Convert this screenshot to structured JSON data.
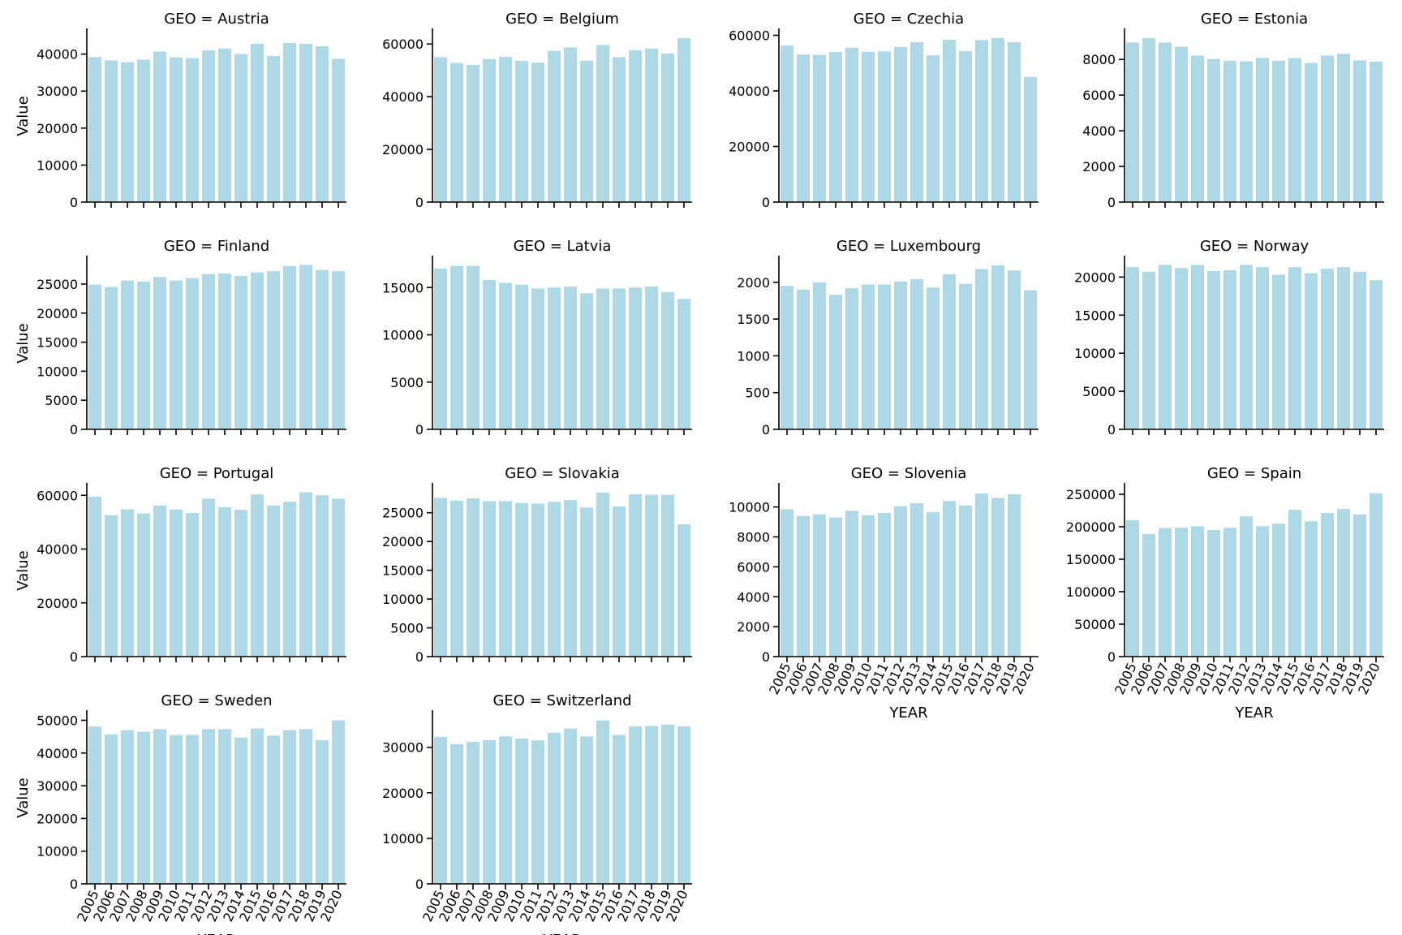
{
  "figure": {
    "bar_color": "#add8e6",
    "axis_color": "#000000",
    "background": "#ffffff"
  },
  "chart_data": [
    {
      "type": "bar",
      "title": "GEO = Austria",
      "xlabel": "",
      "ylabel": "Value",
      "categories": [
        "2005",
        "2006",
        "2007",
        "2008",
        "2009",
        "2010",
        "2011",
        "2012",
        "2013",
        "2014",
        "2015",
        "2016",
        "2017",
        "2018",
        "2019",
        "2020"
      ],
      "values": [
        39200,
        38300,
        37800,
        38500,
        40700,
        39100,
        38900,
        41000,
        41500,
        40000,
        42800,
        39500,
        43000,
        42800,
        42100,
        38700
      ],
      "ylim": [
        0,
        46500
      ],
      "yticks": [
        0,
        10000,
        20000,
        30000,
        40000
      ],
      "show_xticklabels": false
    },
    {
      "type": "bar",
      "title": "GEO = Belgium",
      "xlabel": "",
      "ylabel": "",
      "categories": [
        "2005",
        "2006",
        "2007",
        "2008",
        "2009",
        "2010",
        "2011",
        "2012",
        "2013",
        "2014",
        "2015",
        "2016",
        "2017",
        "2018",
        "2019",
        "2020"
      ],
      "values": [
        55000,
        52800,
        52100,
        54300,
        55100,
        53600,
        52900,
        57400,
        58700,
        53700,
        59600,
        55000,
        57600,
        58300,
        56400,
        62200
      ],
      "ylim": [
        0,
        65300
      ],
      "yticks": [
        0,
        20000,
        40000,
        60000
      ],
      "show_xticklabels": false
    },
    {
      "type": "bar",
      "title": "GEO = Czechia",
      "xlabel": "",
      "ylabel": "",
      "categories": [
        "2005",
        "2006",
        "2007",
        "2008",
        "2009",
        "2010",
        "2011",
        "2012",
        "2013",
        "2014",
        "2015",
        "2016",
        "2017",
        "2018",
        "2019",
        "2020"
      ],
      "values": [
        56300,
        53100,
        53000,
        54000,
        55500,
        54100,
        54200,
        55800,
        57500,
        52800,
        58400,
        54300,
        58300,
        59000,
        57500,
        45000
      ],
      "ylim": [
        0,
        61900
      ],
      "yticks": [
        0,
        20000,
        40000,
        60000
      ],
      "show_xticklabels": false
    },
    {
      "type": "bar",
      "title": "GEO = Estonia",
      "xlabel": "",
      "ylabel": "",
      "categories": [
        "2005",
        "2006",
        "2007",
        "2008",
        "2009",
        "2010",
        "2011",
        "2012",
        "2013",
        "2014",
        "2015",
        "2016",
        "2017",
        "2018",
        "2019",
        "2020"
      ],
      "values": [
        8950,
        9200,
        8950,
        8720,
        8220,
        8030,
        7930,
        7900,
        8090,
        7930,
        8080,
        7800,
        8220,
        8320,
        7950,
        7880
      ],
      "ylim": [
        0,
        9650
      ],
      "yticks": [
        0,
        2000,
        4000,
        6000,
        8000
      ],
      "show_xticklabels": false
    },
    {
      "type": "bar",
      "title": "GEO = Finland",
      "xlabel": "",
      "ylabel": "Value",
      "categories": [
        "2005",
        "2006",
        "2007",
        "2008",
        "2009",
        "2010",
        "2011",
        "2012",
        "2013",
        "2014",
        "2015",
        "2016",
        "2017",
        "2018",
        "2019",
        "2020"
      ],
      "values": [
        24900,
        24500,
        25600,
        25400,
        26200,
        25600,
        26000,
        26700,
        26800,
        26400,
        27000,
        27200,
        28100,
        28300,
        27400,
        27200
      ],
      "ylim": [
        0,
        29600
      ],
      "yticks": [
        0,
        5000,
        10000,
        15000,
        20000,
        25000
      ],
      "show_xticklabels": false
    },
    {
      "type": "bar",
      "title": "GEO = Latvia",
      "xlabel": "",
      "ylabel": "",
      "categories": [
        "2005",
        "2006",
        "2007",
        "2008",
        "2009",
        "2010",
        "2011",
        "2012",
        "2013",
        "2014",
        "2015",
        "2016",
        "2017",
        "2018",
        "2019",
        "2020"
      ],
      "values": [
        17000,
        17300,
        17300,
        15800,
        15500,
        15300,
        14900,
        15000,
        15100,
        14400,
        14900,
        14900,
        15000,
        15100,
        14500,
        13800
      ],
      "ylim": [
        0,
        18200
      ],
      "yticks": [
        0,
        5000,
        10000,
        15000
      ],
      "show_xticklabels": false
    },
    {
      "type": "bar",
      "title": "GEO = Luxembourg",
      "xlabel": "",
      "ylabel": "",
      "categories": [
        "2005",
        "2006",
        "2007",
        "2008",
        "2009",
        "2010",
        "2011",
        "2012",
        "2013",
        "2014",
        "2015",
        "2016",
        "2017",
        "2018",
        "2019",
        "2020"
      ],
      "values": [
        1950,
        1900,
        2000,
        1830,
        1920,
        1970,
        1970,
        2010,
        2040,
        1930,
        2110,
        1980,
        2180,
        2230,
        2160,
        1890
      ],
      "ylim": [
        0,
        2340
      ],
      "yticks": [
        0,
        500,
        1000,
        1500,
        2000
      ],
      "show_xticklabels": false
    },
    {
      "type": "bar",
      "title": "GEO = Norway",
      "xlabel": "",
      "ylabel": "",
      "categories": [
        "2005",
        "2006",
        "2007",
        "2008",
        "2009",
        "2010",
        "2011",
        "2012",
        "2013",
        "2014",
        "2015",
        "2016",
        "2017",
        "2018",
        "2019",
        "2020"
      ],
      "values": [
        21300,
        20700,
        21600,
        21200,
        21600,
        20800,
        20900,
        21600,
        21300,
        20300,
        21300,
        20500,
        21100,
        21300,
        20700,
        19600
      ],
      "ylim": [
        0,
        22600
      ],
      "yticks": [
        0,
        5000,
        10000,
        15000,
        20000
      ],
      "show_xticklabels": false
    },
    {
      "type": "bar",
      "title": "GEO = Portugal",
      "xlabel": "",
      "ylabel": "Value",
      "categories": [
        "2005",
        "2006",
        "2007",
        "2008",
        "2009",
        "2010",
        "2011",
        "2012",
        "2013",
        "2014",
        "2015",
        "2016",
        "2017",
        "2018",
        "2019",
        "2020"
      ],
      "values": [
        59500,
        52600,
        54800,
        53200,
        56200,
        54700,
        53400,
        58700,
        55600,
        54600,
        60300,
        56200,
        57600,
        61100,
        60000,
        58700
      ],
      "ylim": [
        0,
        64000
      ],
      "yticks": [
        0,
        20000,
        40000,
        60000
      ],
      "show_xticklabels": false
    },
    {
      "type": "bar",
      "title": "GEO = Slovakia",
      "xlabel": "",
      "ylabel": "",
      "categories": [
        "2005",
        "2006",
        "2007",
        "2008",
        "2009",
        "2010",
        "2011",
        "2012",
        "2013",
        "2014",
        "2015",
        "2016",
        "2017",
        "2018",
        "2019",
        "2020"
      ],
      "values": [
        27600,
        27100,
        27500,
        27000,
        27000,
        26700,
        26600,
        26900,
        27200,
        25900,
        28500,
        26100,
        28200,
        28100,
        28100,
        23000
      ],
      "ylim": [
        0,
        29900
      ],
      "yticks": [
        0,
        5000,
        10000,
        15000,
        20000,
        25000
      ],
      "show_xticklabels": false
    },
    {
      "type": "bar",
      "title": "GEO = Slovenia",
      "xlabel": "YEAR",
      "ylabel": "",
      "categories": [
        "2005",
        "2006",
        "2007",
        "2008",
        "2009",
        "2010",
        "2011",
        "2012",
        "2013",
        "2014",
        "2015",
        "2016",
        "2017",
        "2018",
        "2019",
        "2020"
      ],
      "values": [
        9850,
        9400,
        9500,
        9300,
        9750,
        9450,
        9600,
        10050,
        10250,
        9650,
        10400,
        10100,
        10900,
        10600,
        10850,
        0
      ],
      "ylim": [
        0,
        11500
      ],
      "yticks": [
        0,
        2000,
        4000,
        6000,
        8000,
        10000
      ],
      "show_xticklabels": true
    },
    {
      "type": "bar",
      "title": "GEO = Spain",
      "xlabel": "YEAR",
      "ylabel": "",
      "categories": [
        "2005",
        "2006",
        "2007",
        "2008",
        "2009",
        "2010",
        "2011",
        "2012",
        "2013",
        "2014",
        "2015",
        "2016",
        "2017",
        "2018",
        "2019",
        "2020"
      ],
      "values": [
        210000,
        189000,
        198000,
        198500,
        200700,
        195000,
        198500,
        216000,
        200800,
        204800,
        226000,
        208500,
        221000,
        227500,
        218800,
        251700
      ],
      "ylim": [
        0,
        265000
      ],
      "yticks": [
        0,
        50000,
        100000,
        150000,
        200000,
        250000
      ],
      "show_xticklabels": true
    },
    {
      "type": "bar",
      "title": "GEO = Sweden",
      "xlabel": "YEAR",
      "ylabel": "Value",
      "categories": [
        "2005",
        "2006",
        "2007",
        "2008",
        "2009",
        "2010",
        "2011",
        "2012",
        "2013",
        "2014",
        "2015",
        "2016",
        "2017",
        "2018",
        "2019",
        "2020"
      ],
      "values": [
        48100,
        45700,
        47000,
        46500,
        47300,
        45500,
        45500,
        47300,
        47300,
        44700,
        47500,
        45300,
        47000,
        47300,
        43900,
        50000
      ],
      "ylim": [
        0,
        52600
      ],
      "yticks": [
        0,
        10000,
        20000,
        30000,
        40000,
        50000
      ],
      "show_xticklabels": true
    },
    {
      "type": "bar",
      "title": "GEO = Switzerland",
      "xlabel": "YEAR",
      "ylabel": "",
      "categories": [
        "2005",
        "2006",
        "2007",
        "2008",
        "2009",
        "2010",
        "2011",
        "2012",
        "2013",
        "2014",
        "2015",
        "2016",
        "2017",
        "2018",
        "2019",
        "2020"
      ],
      "values": [
        32300,
        30700,
        31200,
        31600,
        32400,
        31900,
        31500,
        33200,
        34100,
        32400,
        35900,
        32700,
        34600,
        34700,
        35000,
        34600
      ],
      "ylim": [
        0,
        37800
      ],
      "yticks": [
        0,
        10000,
        20000,
        30000
      ],
      "show_xticklabels": true
    }
  ]
}
